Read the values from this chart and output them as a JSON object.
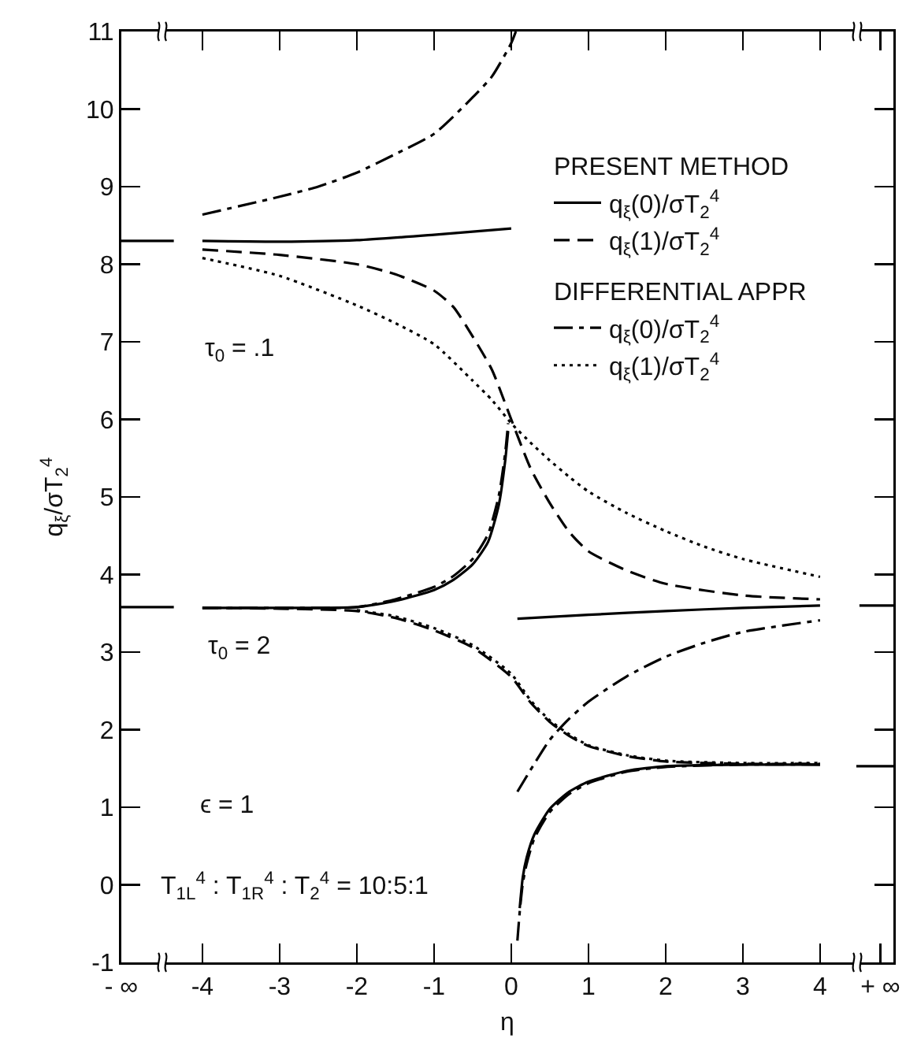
{
  "chart_data": {
    "type": "line",
    "xlabel": "η",
    "ylabel": "q$_{ξ}$/σT$_{2}$$^{4}$",
    "xlim": [
      -5.05,
      4.95
    ],
    "ylim": [
      -1,
      11
    ],
    "xticks": [
      {
        "value": -5.05,
        "label": "- ∞"
      },
      -4,
      -3,
      -2,
      -1,
      0,
      1,
      2,
      3,
      4,
      {
        "value": 4.78,
        "label": "+ ∞"
      }
    ],
    "yticks": [
      -1,
      0,
      1,
      2,
      3,
      4,
      5,
      6,
      7,
      8,
      9,
      10,
      11
    ],
    "grid": false,
    "legend": "top right",
    "annotations": [
      "PRESENT METHOD",
      "DIFFERENTIAL APPR",
      "τ$_{0}$ = .1",
      "τ$_{0}$ = 2",
      "ϵ = 1",
      "T$_{1L}$$^{4}$ : T$_{1R}$$^{4}$ : T$_{2}$$^{4}$ = 10:5:1"
    ],
    "series": [
      {
        "name": "q$_{ξ}$(0)/σT$_{2}$$^{4}$",
        "color": "#000000",
        "line_style": "solid",
        "x": [
          -4,
          -3,
          -2,
          -1,
          0
        ],
        "values": [
          8.3,
          8.29,
          8.31,
          8.38,
          8.46
        ]
      },
      {
        "name": "q$_{ξ}$(1)/σT$_{2}$$^{4}$",
        "color": "#000000",
        "line_style": "dashed",
        "x": [
          -4,
          -3,
          -2,
          -1.5,
          -1,
          -0.75,
          -0.5,
          -0.25,
          0,
          0.25,
          0.5,
          0.75,
          1,
          1.5,
          2,
          3,
          4
        ],
        "values": [
          8.19,
          8.12,
          8.0,
          7.87,
          7.66,
          7.45,
          7.07,
          6.64,
          6.0,
          5.37,
          4.92,
          4.55,
          4.3,
          4.05,
          3.88,
          3.73,
          3.68
        ]
      },
      {
        "name": "q$_{ξ}$(0)/σT$_{2}$$^{4}$",
        "color": "#000000",
        "line_style": "dashdot",
        "x": [
          -4,
          -3,
          -2.5,
          -2,
          -1.5,
          -1,
          -0.5,
          -0.25,
          0,
          0.06
        ],
        "values": [
          8.64,
          8.87,
          9.0,
          9.18,
          9.42,
          9.68,
          10.15,
          10.42,
          10.85,
          11.0
        ]
      },
      {
        "name": "q$_{ξ}$(1)/σT$_{2}$$^{4}$",
        "color": "#000000",
        "line_style": "dotted",
        "x": [
          -4,
          -3,
          -2,
          -1.5,
          -1,
          -0.5,
          -0.25,
          0,
          0.25,
          0.5,
          0.75,
          1,
          1.5,
          2,
          2.5,
          3,
          4
        ],
        "values": [
          8.08,
          7.85,
          7.47,
          7.24,
          6.97,
          6.5,
          6.25,
          5.95,
          5.7,
          5.47,
          5.26,
          5.07,
          4.79,
          4.56,
          4.36,
          4.2,
          3.97
        ]
      },
      {
        "color": "#000000",
        "line_style": "solid",
        "x": [
          0.08,
          1,
          2,
          3,
          4
        ],
        "values": [
          3.43,
          3.48,
          3.53,
          3.57,
          3.6
        ]
      },
      {
        "color": "#000000",
        "line_style": "dashdot",
        "x": [
          0.08,
          0.25,
          0.5,
          0.75,
          1,
          1.5,
          2,
          2.5,
          3,
          4
        ],
        "values": [
          1.2,
          1.48,
          1.87,
          2.14,
          2.36,
          2.69,
          2.94,
          3.12,
          3.26,
          3.41
        ]
      },
      {
        "color": "#000000",
        "line_style": "solid",
        "x": [
          -4,
          -3,
          -2,
          -1.5,
          -1,
          -0.75,
          -0.5,
          -0.3,
          -0.16,
          -0.08,
          -0.04
        ],
        "values": [
          3.57,
          3.57,
          3.58,
          3.66,
          3.8,
          3.93,
          4.13,
          4.42,
          4.9,
          5.45,
          5.85
        ]
      },
      {
        "color": "#000000",
        "line_style": "dashdot",
        "x": [
          -4,
          -3,
          -2,
          -1.5,
          -1,
          -0.75,
          -0.5,
          -0.3,
          -0.16,
          -0.08,
          -0.04
        ],
        "values": [
          3.57,
          3.57,
          3.58,
          3.68,
          3.84,
          3.98,
          4.2,
          4.52,
          5.02,
          5.55,
          5.95
        ]
      },
      {
        "color": "#000000",
        "line_style": "solid",
        "x": [
          0.11,
          0.15,
          0.2,
          0.3,
          0.5,
          0.75,
          1,
          1.5,
          2,
          3,
          4
        ],
        "values": [
          -0.3,
          0.1,
          0.35,
          0.65,
          0.98,
          1.2,
          1.33,
          1.47,
          1.53,
          1.55,
          1.55
        ]
      },
      {
        "color": "#000000",
        "line_style": "dashdot",
        "x": [
          0.08,
          0.11,
          0.15,
          0.2,
          0.3,
          0.5,
          0.75,
          1,
          1.5,
          2,
          3,
          4
        ],
        "values": [
          -0.72,
          -0.35,
          0.02,
          0.27,
          0.6,
          0.94,
          1.17,
          1.31,
          1.46,
          1.52,
          1.55,
          1.55
        ]
      },
      {
        "color": "#000000",
        "line_style": "dashed",
        "x": [
          -4,
          -3,
          -2,
          -1.5,
          -1,
          -0.5,
          0,
          0.25,
          0.5,
          0.75,
          1,
          1.5,
          2,
          3,
          4
        ],
        "values": [
          3.57,
          3.56,
          3.53,
          3.44,
          3.28,
          3.06,
          2.68,
          2.35,
          2.1,
          1.92,
          1.79,
          1.66,
          1.59,
          1.56,
          1.56
        ]
      },
      {
        "color": "#000000",
        "line_style": "dotted",
        "x": [
          -2,
          -1.5,
          -1,
          -0.5,
          0,
          0.25,
          0.5,
          0.75,
          1,
          1.5,
          2,
          3,
          4
        ],
        "values": [
          3.54,
          3.46,
          3.31,
          3.09,
          2.72,
          2.38,
          2.12,
          1.94,
          1.8,
          1.67,
          1.6,
          1.57,
          1.57
        ]
      },
      {
        "color": "#000000",
        "line_style": "solid",
        "x": [
          -5.05,
          -4.37
        ],
        "values": [
          8.3,
          8.3
        ]
      },
      {
        "color": "#000000",
        "line_style": "solid",
        "x": [
          -5.05,
          -4.37
        ],
        "values": [
          3.58,
          3.58
        ]
      },
      {
        "color": "#000000",
        "line_style": "solid",
        "x": [
          4.51,
          4.95
        ],
        "values": [
          3.6,
          3.6
        ]
      },
      {
        "color": "#000000",
        "line_style": "solid",
        "x": [
          4.47,
          4.95
        ],
        "values": [
          1.53,
          1.53
        ]
      }
    ]
  }
}
